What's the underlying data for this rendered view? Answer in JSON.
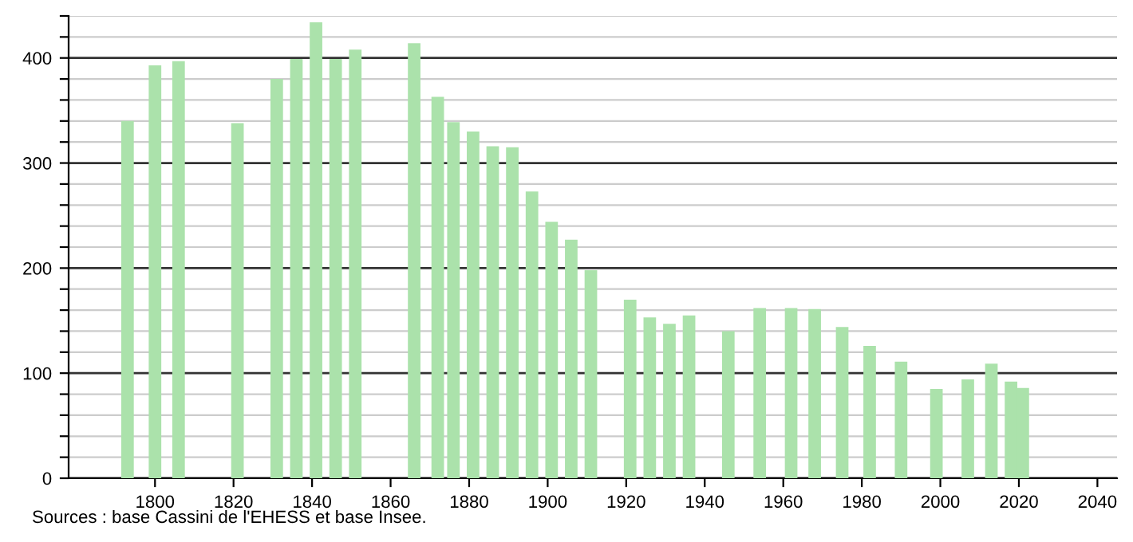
{
  "chart_data": {
    "type": "bar",
    "color": "#abe2ab",
    "grid": "y",
    "x": [
      1793,
      1800,
      1806,
      1821,
      1831,
      1836,
      1841,
      1846,
      1851,
      1866,
      1872,
      1876,
      1881,
      1886,
      1891,
      1896,
      1901,
      1906,
      1911,
      1921,
      1926,
      1931,
      1936,
      1946,
      1954,
      1962,
      1968,
      1975,
      1982,
      1990,
      1999,
      2007,
      2013,
      2018,
      2021
    ],
    "values": [
      340,
      393,
      397,
      338,
      380,
      399,
      434,
      399,
      408,
      414,
      363,
      339,
      330,
      316,
      315,
      273,
      244,
      227,
      198,
      170,
      153,
      147,
      155,
      140,
      162,
      162,
      161,
      144,
      126,
      111,
      85,
      94,
      109,
      92,
      86
    ],
    "xlim": [
      1778,
      2045
    ],
    "xticks": [
      1800,
      1820,
      1840,
      1860,
      1880,
      1900,
      1920,
      1940,
      1960,
      1980,
      2000,
      2020,
      2040
    ],
    "ylim": [
      0,
      440
    ],
    "yticks": [
      0,
      {
        "value": 20,
        "label": null
      },
      {
        "value": 40,
        "label": null
      },
      {
        "value": 60,
        "label": null
      },
      {
        "value": 80,
        "label": null
      },
      100,
      {
        "value": 120,
        "label": null
      },
      {
        "value": 140,
        "label": null
      },
      {
        "value": 160,
        "label": null
      },
      {
        "value": 180,
        "label": null
      },
      200,
      {
        "value": 220,
        "label": null
      },
      {
        "value": 240,
        "label": null
      },
      {
        "value": 260,
        "label": null
      },
      {
        "value": 280,
        "label": null
      },
      300,
      {
        "value": 320,
        "label": null
      },
      {
        "value": 340,
        "label": null
      },
      {
        "value": 360,
        "label": null
      },
      {
        "value": 380,
        "label": null
      },
      400,
      {
        "value": 420,
        "label": null
      },
      {
        "value": 440,
        "label": null
      }
    ],
    "annotations": [
      "Sources : base Cassini de l'EHESS et base Insee."
    ]
  }
}
